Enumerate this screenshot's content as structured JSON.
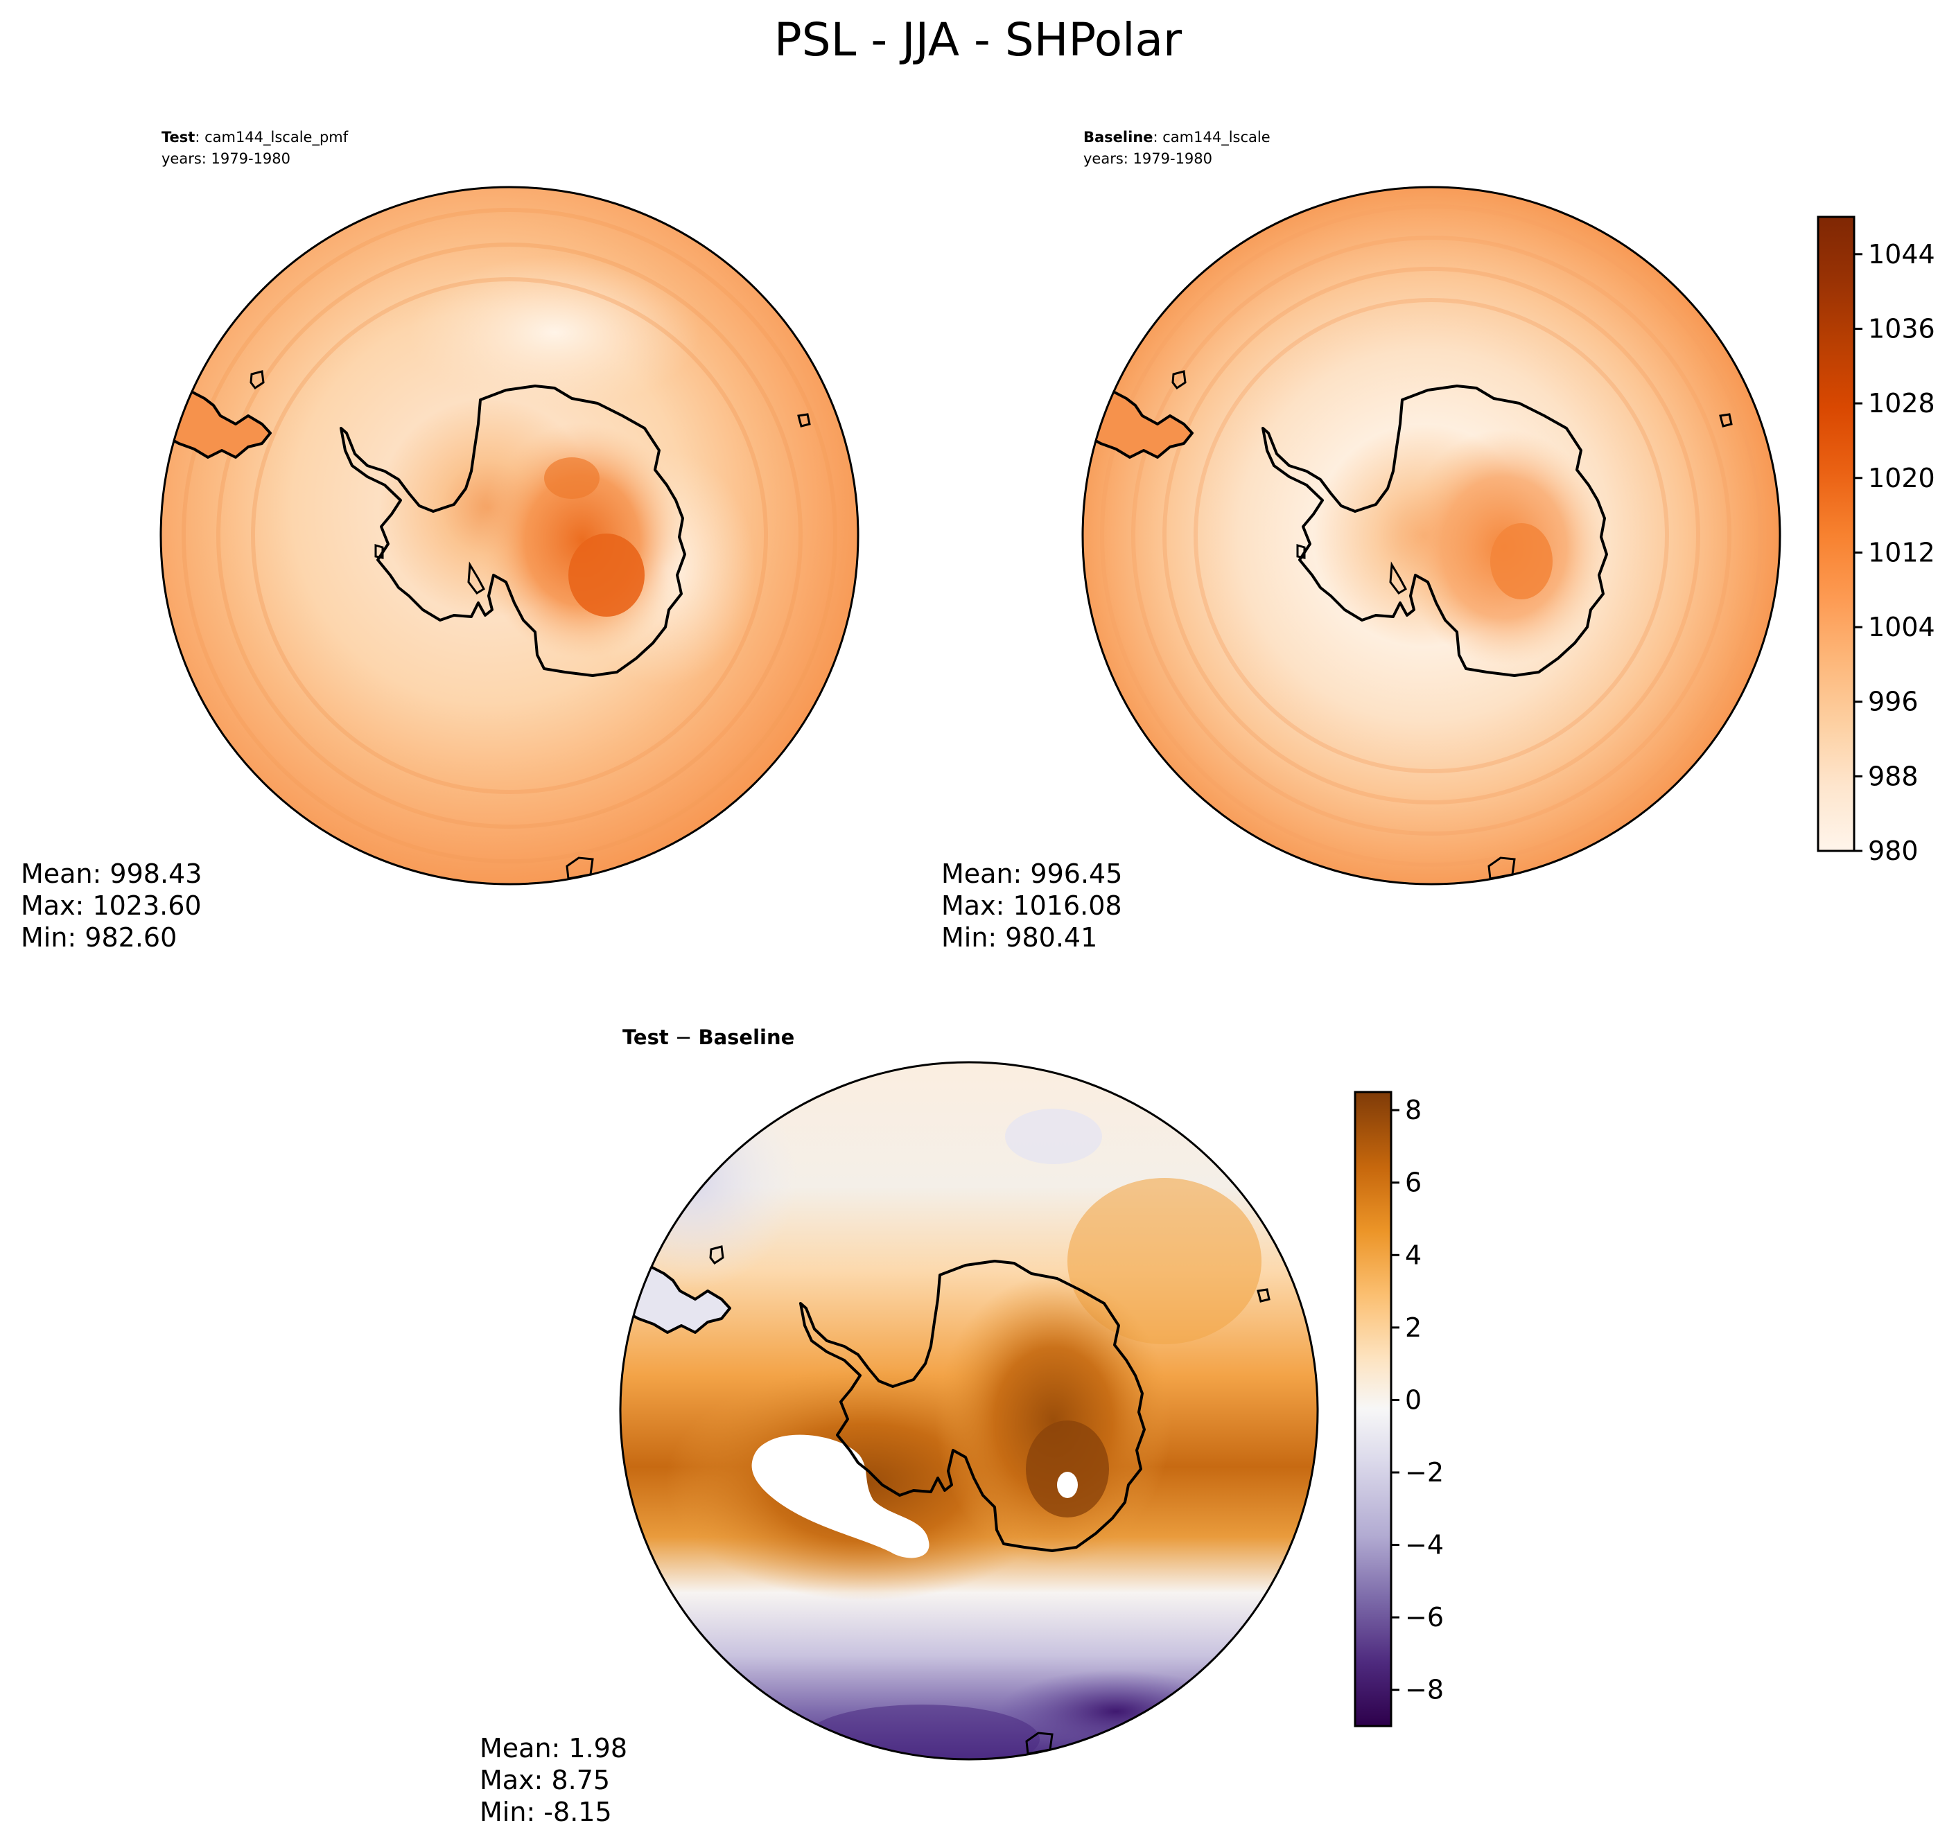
{
  "figure": {
    "title": "PSL - JJA - SHPolar"
  },
  "panels": {
    "test": {
      "label_bold": "Test",
      "label_rest": ": cam144_lscale_pmf",
      "years": "years: 1979-1980",
      "stats": {
        "mean": "Mean: 998.43",
        "max": "Max: 1023.60",
        "min": "Min: 982.60"
      }
    },
    "baseline": {
      "label_bold": "Baseline",
      "label_rest": ": cam144_lscale",
      "years": "years: 1979-1980",
      "stats": {
        "mean": "Mean: 996.45",
        "max": "Max: 1016.08",
        "min": "Min: 980.41"
      }
    },
    "diff": {
      "label_bold_a": "Test",
      "label_sep": " − ",
      "label_bold_b": "Baseline",
      "stats": {
        "mean": "Mean:  1.98",
        "max": "Max:  8.75",
        "min": "Min: -8.15"
      }
    }
  },
  "colors": {
    "oranges": [
      "#fff5eb",
      "#fee9d4",
      "#fdd9b4",
      "#fdc692",
      "#fdae6b",
      "#fd9649",
      "#f67e2a",
      "#e5600d",
      "#cc4b02",
      "#a83803",
      "#7f2704"
    ],
    "puor": [
      "#2d004b",
      "#5b3c8e",
      "#8d83b6",
      "#c2bfdc",
      "#e8e8f1",
      "#f7f7f7",
      "#fddcb0",
      "#f9b65e",
      "#e88e20",
      "#c36708",
      "#7f3b08"
    ]
  },
  "chart_data": [
    {
      "type": "heatmap",
      "name_ref": "test",
      "variable": "PSL",
      "season": "JJA",
      "region": "SHPolar",
      "stats": {
        "mean": 998.43,
        "max": 1023.6,
        "min": 982.6
      },
      "colorbar": {
        "range": [
          980,
          1048
        ],
        "ticks": [
          980,
          988,
          996,
          1004,
          1012,
          1020,
          1028,
          1036,
          1044
        ],
        "levels_step": 4,
        "cmap": "Oranges"
      }
    },
    {
      "type": "heatmap",
      "name_ref": "baseline",
      "variable": "PSL",
      "season": "JJA",
      "region": "SHPolar",
      "stats": {
        "mean": 996.45,
        "max": 1016.08,
        "min": 980.41
      },
      "colorbar": {
        "range": [
          980,
          1048
        ],
        "ticks": [
          980,
          988,
          996,
          1004,
          1012,
          1020,
          1028,
          1036,
          1044
        ],
        "levels_step": 4,
        "cmap": "Oranges"
      }
    },
    {
      "type": "heatmap",
      "name_ref": "diff",
      "variable": "PSL",
      "season": "JJA",
      "region": "SHPolar",
      "stats": {
        "mean": 1.98,
        "max": 8.75,
        "min": -8.15
      },
      "colorbar": {
        "range": [
          -9,
          8.5
        ],
        "ticks": [
          -8,
          -6,
          -4,
          -2,
          0,
          2,
          4,
          6,
          8
        ],
        "tick_labels": [
          "−8",
          "−6",
          "−4",
          "−2",
          "0",
          "2",
          "4",
          "6",
          "8"
        ],
        "cmap": "PuOr_r"
      }
    }
  ]
}
